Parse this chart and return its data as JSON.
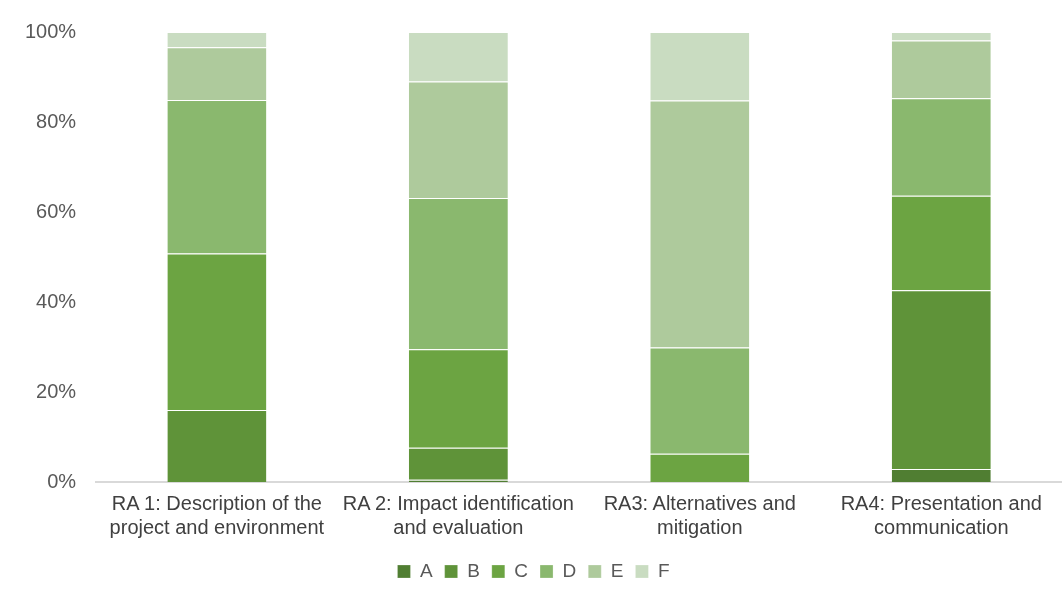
{
  "chart_data": {
    "type": "bar",
    "stacked": true,
    "categories": [
      "RA 1: Description of the project and environment",
      "RA 2: Impact identification and evaluation",
      "RA3: Alternatives and mitigation",
      "RA4: Presentation and communication"
    ],
    "series": [
      {
        "name": "A",
        "color": "#507e32",
        "values": [
          0,
          0.5,
          0,
          2.9
        ]
      },
      {
        "name": "B",
        "color": "#5f9339",
        "values": [
          16.0,
          7.1,
          0,
          39.7
        ]
      },
      {
        "name": "C",
        "color": "#6ca442",
        "values": [
          34.8,
          21.9,
          6.3,
          21.0
        ]
      },
      {
        "name": "D",
        "color": "#8ab86e",
        "values": [
          34.1,
          33.6,
          23.6,
          21.7
        ]
      },
      {
        "name": "E",
        "color": "#aeca9c",
        "values": [
          11.7,
          25.9,
          54.9,
          12.8
        ]
      },
      {
        "name": "F",
        "color": "#c9dcc1",
        "values": [
          3.4,
          11.0,
          15.2,
          1.9
        ]
      }
    ],
    "ylim": [
      0,
      100
    ],
    "yticks": [
      {
        "value": 0,
        "label": "0%"
      },
      {
        "value": 20,
        "label": "20%"
      },
      {
        "value": 40,
        "label": "40%"
      },
      {
        "value": 60,
        "label": "60%"
      },
      {
        "value": 80,
        "label": "80%"
      },
      {
        "value": 100,
        "label": "100%"
      }
    ],
    "grid": false,
    "legend": "bottom"
  }
}
